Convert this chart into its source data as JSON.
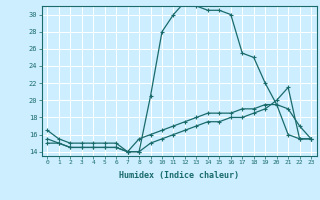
{
  "xlabel": "Humidex (Indice chaleur)",
  "ylabel": "",
  "xlim": [
    -0.5,
    23.5
  ],
  "ylim": [
    13.5,
    31.0
  ],
  "xticks": [
    0,
    1,
    2,
    3,
    4,
    5,
    6,
    7,
    8,
    9,
    10,
    11,
    12,
    13,
    14,
    15,
    16,
    17,
    18,
    19,
    20,
    21,
    22,
    23
  ],
  "yticks": [
    14,
    16,
    18,
    20,
    22,
    24,
    26,
    28,
    30
  ],
  "background_color": "#cceeff",
  "grid_color": "#ffffff",
  "line_color": "#1a6b6b",
  "lines": [
    {
      "x": [
        0,
        1,
        2,
        3,
        4,
        5,
        6,
        7,
        8,
        9,
        10,
        11,
        12,
        13,
        14,
        15,
        16,
        17,
        18,
        19,
        20,
        21,
        22,
        23
      ],
      "y": [
        16.5,
        15.5,
        15.0,
        15.0,
        15.0,
        15.0,
        15.0,
        14.0,
        14.0,
        20.5,
        28.0,
        30.0,
        31.5,
        31.0,
        30.5,
        30.5,
        30.0,
        25.5,
        25.0,
        22.0,
        19.5,
        19.0,
        17.0,
        15.5
      ]
    },
    {
      "x": [
        0,
        1,
        2,
        3,
        4,
        5,
        6,
        7,
        8,
        9,
        10,
        11,
        12,
        13,
        14,
        15,
        16,
        17,
        18,
        19,
        20,
        21,
        22,
        23
      ],
      "y": [
        15.0,
        15.0,
        14.5,
        14.5,
        14.5,
        14.5,
        14.5,
        14.0,
        15.5,
        16.0,
        16.5,
        17.0,
        17.5,
        18.0,
        18.5,
        18.5,
        18.5,
        19.0,
        19.0,
        19.5,
        19.5,
        16.0,
        15.5,
        15.5
      ]
    },
    {
      "x": [
        0,
        1,
        2,
        3,
        4,
        5,
        6,
        7,
        8,
        9,
        10,
        11,
        12,
        13,
        14,
        15,
        16,
        17,
        18,
        19,
        20,
        21,
        22,
        23
      ],
      "y": [
        15.5,
        15.0,
        14.5,
        14.5,
        14.5,
        14.5,
        14.5,
        14.0,
        14.0,
        15.0,
        15.5,
        16.0,
        16.5,
        17.0,
        17.5,
        17.5,
        18.0,
        18.0,
        18.5,
        19.0,
        20.0,
        21.5,
        15.5,
        15.5
      ]
    }
  ]
}
